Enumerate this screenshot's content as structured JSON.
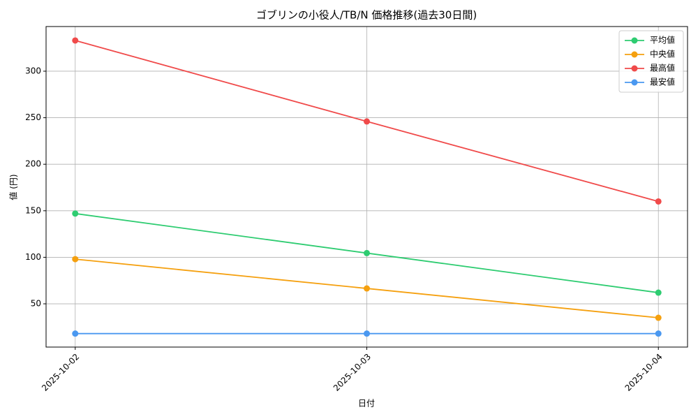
{
  "chart_data": {
    "type": "line",
    "title": "ゴブリンの小役人/TB/N 価格推移(過去30日間)",
    "x_label": "日付",
    "y_label": "値 (円)",
    "categories": [
      "2025-10-02",
      "2025-10-03",
      "2025-10-04"
    ],
    "series": [
      {
        "name": "平均値",
        "color": "#2ecc71",
        "values": [
          147,
          104.5,
          62
        ]
      },
      {
        "name": "中央値",
        "color": "#f5a00f",
        "values": [
          98,
          66.5,
          35
        ]
      },
      {
        "name": "最高値",
        "color": "#f04a4a",
        "values": [
          333,
          246,
          160
        ]
      },
      {
        "name": "最安値",
        "color": "#4a98f0",
        "values": [
          18,
          18,
          18
        ]
      }
    ],
    "ylim": [
      3.5,
      348
    ],
    "yticks": [
      50,
      100,
      150,
      200,
      250,
      300
    ],
    "grid": true,
    "legend": "upper right"
  }
}
